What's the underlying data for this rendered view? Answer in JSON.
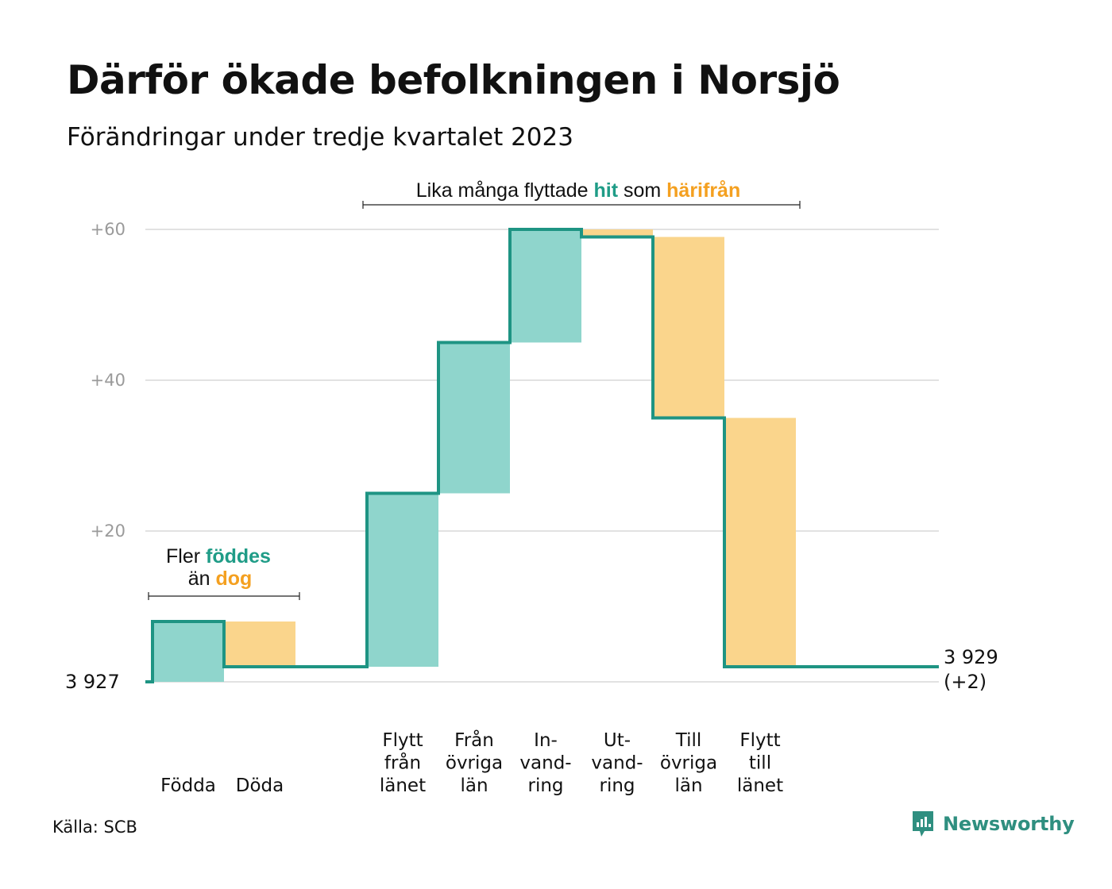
{
  "header": {
    "title": "Därför ökade befolkningen i Norsjö",
    "subtitle": "Förändringar under tredje kvartalet 2023"
  },
  "footer": {
    "source": "Källa: SCB",
    "brand": "Newsworthy",
    "brand_icon": "newsworthy-logo-icon"
  },
  "colors": {
    "increase_fill": "#8fd5cc",
    "decrease_fill": "#fad58c",
    "line": "#1e9483",
    "grid": "#e2e2e2",
    "accent_teal": "#1f9c87",
    "accent_orange": "#f4a020"
  },
  "chart_data": {
    "type": "waterfall",
    "title": "Därför ökade befolkningen i Norsjö",
    "subtitle": "Förändringar under tredje kvartalet 2023",
    "start_value": 3927,
    "start_label": "3  927",
    "end_value": 3929,
    "end_label": [
      "3 929",
      "(+2)"
    ],
    "y_ticks": [
      {
        "value": 20,
        "label": "+20"
      },
      {
        "value": 40,
        "label": "+40"
      },
      {
        "value": 60,
        "label": "+60"
      }
    ],
    "ylim": [
      0,
      60
    ],
    "grid": true,
    "categories": [
      {
        "name": "Födda",
        "lines": [
          "Födda"
        ],
        "change": 8
      },
      {
        "name": "Döda",
        "lines": [
          "Döda"
        ],
        "change": -6
      },
      {
        "name": "",
        "lines": [],
        "change": 0
      },
      {
        "name": "Flytt från länet",
        "lines": [
          "Flytt",
          "från",
          "länet"
        ],
        "change": 23
      },
      {
        "name": "Från övriga län",
        "lines": [
          "Från",
          "övriga",
          "län"
        ],
        "change": 20
      },
      {
        "name": "Invandring",
        "lines": [
          "In-",
          "vand-",
          "ring"
        ],
        "change": 15
      },
      {
        "name": "Utvandring",
        "lines": [
          "Ut-",
          "vand-",
          "ring"
        ],
        "change": -1
      },
      {
        "name": "Till övriga län",
        "lines": [
          "Till",
          "övriga",
          "län"
        ],
        "change": -24
      },
      {
        "name": "Flytt till länet",
        "lines": [
          "Flytt",
          "till",
          "länet"
        ],
        "change": -33
      }
    ],
    "annotations": [
      {
        "id": "births",
        "parts": [
          [
            {
              "text": "Fler ",
              "style": "plain"
            },
            {
              "text": "föddes",
              "style": "teal"
            }
          ],
          [
            {
              "text": "än ",
              "style": "plain"
            },
            {
              "text": "dog",
              "style": "orange"
            }
          ]
        ]
      },
      {
        "id": "migration",
        "parts": [
          [
            {
              "text": "Lika många flyttade ",
              "style": "plain"
            },
            {
              "text": "hit",
              "style": "teal"
            },
            {
              "text": "  som ",
              "style": "plain"
            },
            {
              "text": "härifrån",
              "style": "orange"
            }
          ]
        ]
      }
    ]
  }
}
